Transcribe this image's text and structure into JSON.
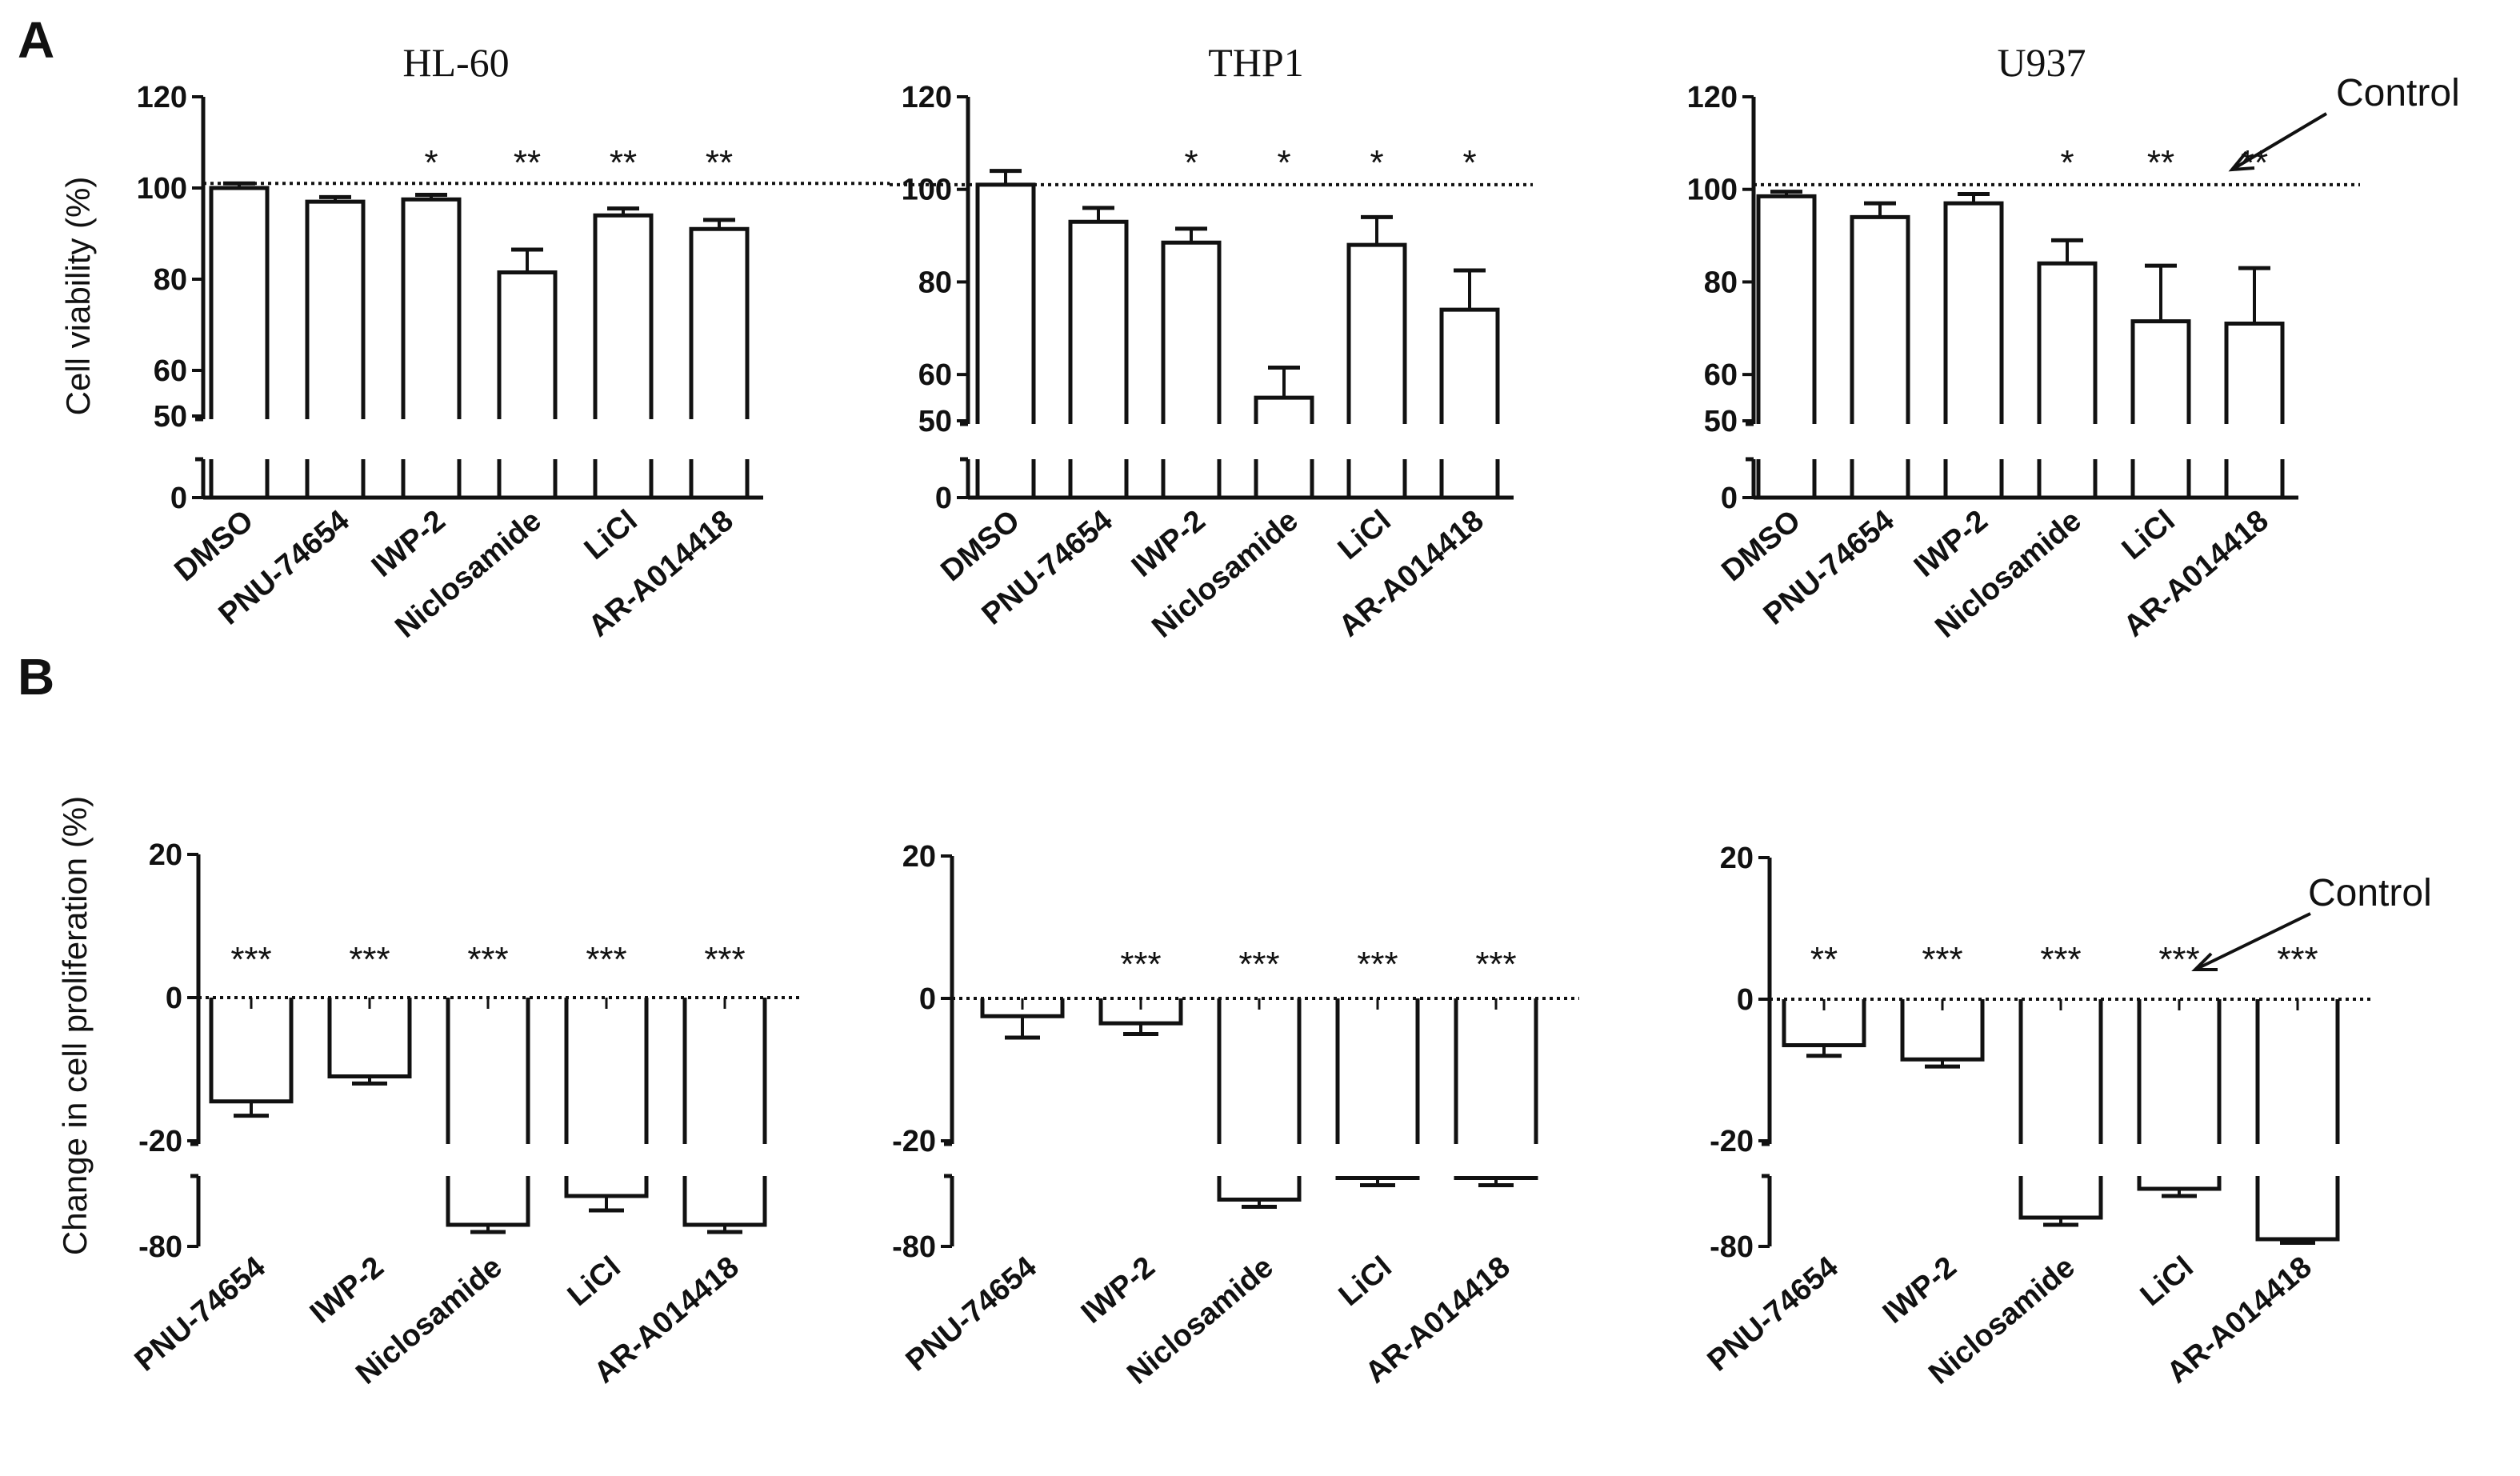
{
  "panel_labels": [
    "A",
    "B"
  ],
  "annotations": {
    "control_label": "Control"
  },
  "chart_data": [
    {
      "type": "bar",
      "panel": "A",
      "title": "HL-60",
      "ylabel": "Cell viability (%)",
      "categories": [
        "DMSO",
        "PNU-74654",
        "IWP-2",
        "Niclosamide",
        "LiCl",
        "AR-A014418"
      ],
      "values": [
        100,
        97,
        97.5,
        81.5,
        94,
        91
      ],
      "errors": [
        1,
        1,
        1,
        5,
        1.5,
        2
      ],
      "significance": [
        "",
        "",
        "*",
        "**",
        "**",
        "**"
      ],
      "ylim": [
        0,
        120
      ],
      "axis_break": [
        50,
        50
      ],
      "yticks_upper": [
        "60",
        "80",
        "100",
        "120"
      ],
      "yticks_lower": [
        "0",
        "50"
      ],
      "control_line": 101
    },
    {
      "type": "bar",
      "panel": "A",
      "title": "THP1",
      "ylabel": "",
      "categories": [
        "DMSO",
        "PNU-74654",
        "IWP-2",
        "Niclosamide",
        "LiCl",
        "AR-A014418"
      ],
      "values": [
        101,
        93,
        88.5,
        55,
        88,
        74
      ],
      "errors": [
        3,
        3,
        3,
        6.5,
        6,
        8.5
      ],
      "significance": [
        "",
        "",
        "*",
        "*",
        "*",
        "*"
      ],
      "ylim": [
        0,
        120
      ],
      "axis_break": [
        50,
        50
      ],
      "yticks_upper": [
        "60",
        "80",
        "100",
        "120"
      ],
      "yticks_lower": [
        "0",
        "50"
      ],
      "control_line": 101
    },
    {
      "type": "bar",
      "panel": "A",
      "title": "U937",
      "ylabel": "",
      "categories": [
        "DMSO",
        "PNU-74654",
        "IWP-2",
        "Niclosamide",
        "LiCl",
        "AR-A014418"
      ],
      "values": [
        98.5,
        94,
        97,
        84,
        71.5,
        71
      ],
      "errors": [
        1,
        3,
        2,
        5,
        12,
        12
      ],
      "significance": [
        "",
        "",
        "",
        "*",
        "**",
        "**"
      ],
      "ylim": [
        0,
        120
      ],
      "axis_break": [
        50,
        50
      ],
      "yticks_upper": [
        "60",
        "80",
        "100",
        "120"
      ],
      "yticks_lower": [
        "0",
        "50"
      ],
      "control_line": 101
    },
    {
      "type": "bar",
      "panel": "B",
      "title": "",
      "ylabel": "Change in cell proliferation (%)",
      "categories": [
        "PNU-74654",
        "IWP-2",
        "Niclosamide",
        "LiCl",
        "AR-A014418"
      ],
      "values": [
        -14.5,
        -11,
        -77,
        -73,
        -77
      ],
      "errors": [
        2,
        1,
        1,
        2,
        1
      ],
      "significance": [
        "***",
        "***",
        "***",
        "***",
        "***"
      ],
      "ylim": [
        -80,
        20
      ],
      "axis_break": [
        -70,
        -20
      ],
      "yticks_upper": [
        "-20",
        "0",
        "20"
      ],
      "yticks_lower": [
        "-80"
      ],
      "control_line": 0
    },
    {
      "type": "bar",
      "panel": "B",
      "title": "",
      "ylabel": "",
      "categories": [
        "PNU-74654",
        "IWP-2",
        "Niclosamide",
        "LiCl",
        "AR-A014418"
      ],
      "values": [
        -2.5,
        -3.5,
        -73.5,
        -70.5,
        -70.5
      ],
      "errors": [
        3,
        1.5,
        1,
        1,
        1
      ],
      "significance": [
        "",
        "***",
        "***",
        "***",
        "***"
      ],
      "ylim": [
        -80,
        20
      ],
      "axis_break": [
        -70,
        -20
      ],
      "yticks_upper": [
        "-20",
        "0",
        "20"
      ],
      "yticks_lower": [
        "-80"
      ],
      "control_line": 0
    },
    {
      "type": "bar",
      "panel": "B",
      "title": "",
      "ylabel": "",
      "categories": [
        "PNU-74654",
        "IWP-2",
        "Niclosamide",
        "LiCl",
        "AR-A014418"
      ],
      "values": [
        -6.5,
        -8.5,
        -76,
        -72,
        -79
      ],
      "errors": [
        1.5,
        1,
        1,
        1,
        0.5
      ],
      "significance": [
        "**",
        "***",
        "***",
        "***",
        "***"
      ],
      "ylim": [
        -80,
        20
      ],
      "axis_break": [
        -70,
        -20
      ],
      "yticks_upper": [
        "-20",
        "0",
        "20"
      ],
      "yticks_lower": [
        "-80"
      ],
      "control_line": 0
    }
  ]
}
